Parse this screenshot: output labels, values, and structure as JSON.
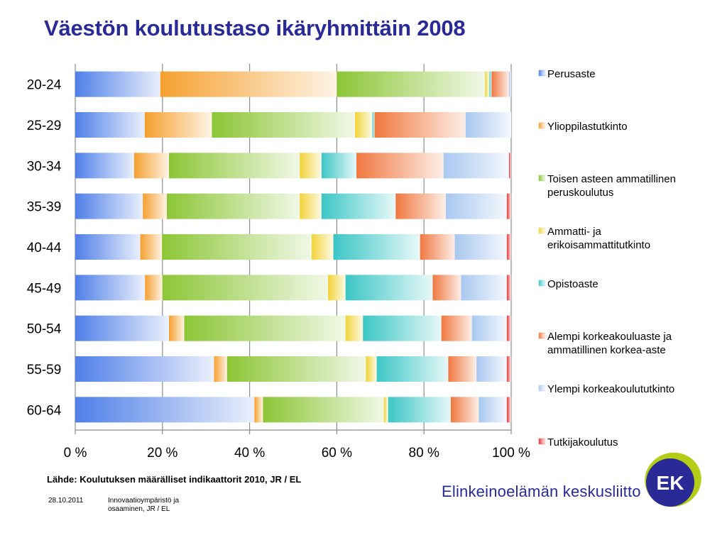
{
  "title": "Väestön koulutustaso ikäryhmittäin 2008",
  "source": "Lähde: Koulutuksen määrälliset indikaattorit 2010, JR / EL",
  "footer": {
    "date": "28.10.2011",
    "description": "Innovaatioympäristö ja osaaminen, JR / EL"
  },
  "organization": {
    "name": "Elinkeinoelämän keskusliitto",
    "logo_text": "EK"
  },
  "chart_data": {
    "type": "bar",
    "orientation": "horizontal",
    "stacked": "percent",
    "categories": [
      "20-24",
      "25-29",
      "30-34",
      "35-39",
      "40-44",
      "45-49",
      "50-54",
      "55-59",
      "60-64"
    ],
    "xlim": [
      0,
      100
    ],
    "xticks": [
      "0 %",
      "20 %",
      "40 %",
      "60 %",
      "80 %",
      "100 %"
    ],
    "grid": "vertical",
    "legend": "right",
    "series": [
      {
        "name": "Perusaste",
        "color": "#4f7fe8",
        "values": [
          19.5,
          16,
          13.5,
          15.5,
          15,
          16,
          21.5,
          32,
          41.5
        ]
      },
      {
        "name": "Ylioppilastutkinto",
        "color": "#f5a030",
        "values": [
          40.5,
          15.5,
          8,
          5.5,
          5,
          4,
          3.5,
          3,
          2
        ]
      },
      {
        "name": "Toisen asteen ammatillinen peruskoulutus",
        "color": "#8cc636",
        "values": [
          34,
          33,
          30,
          30.5,
          34.5,
          38,
          37,
          32,
          28
        ]
      },
      {
        "name": "Ammatti- ja erikoisammattitutkinto",
        "color": "#f2d338",
        "values": [
          1,
          4,
          5,
          5,
          5,
          4,
          4,
          2.5,
          1
        ]
      },
      {
        "name": "Opistoaste",
        "color": "#3cc6c6",
        "values": [
          0.5,
          0.5,
          8,
          17,
          20,
          20,
          18,
          16.5,
          14.5
        ]
      },
      {
        "name": "Alempi korkeakouluaste ja ammatillinen korkea-aste",
        "color": "#f07840",
        "values": [
          4,
          21,
          20,
          11.5,
          8,
          6.5,
          7,
          6.5,
          6.5
        ]
      },
      {
        "name": "Ylempi korkeakoulututkinto",
        "color": "#a8c8f0",
        "values": [
          0.5,
          10.5,
          15,
          14,
          12,
          10.5,
          8,
          7,
          6.5
        ]
      },
      {
        "name": "Tutkijakoulutus",
        "color": "#e23a3a",
        "values": [
          0,
          0,
          0.5,
          1,
          1,
          1,
          1,
          1,
          1
        ]
      }
    ]
  }
}
